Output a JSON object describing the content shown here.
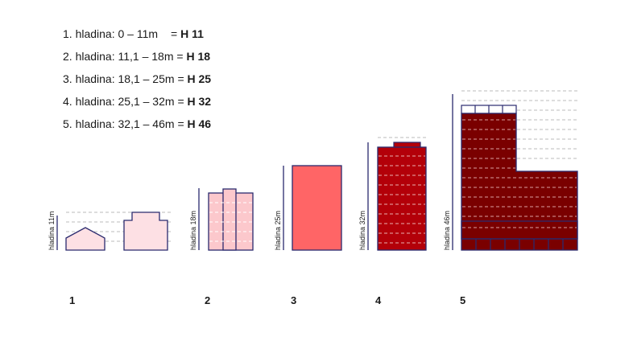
{
  "legend": [
    {
      "prefix": "1. hladina: 0 – 11m",
      "eq": "=",
      "code": "H 11"
    },
    {
      "prefix": "2. hladina: 11,1 – 18m",
      "eq": "=",
      "code": "H 18"
    },
    {
      "prefix": "3. hladina: 18,1 – 25m",
      "eq": "=",
      "code": "H 25"
    },
    {
      "prefix": "4. hladina: 25,1 – 32m",
      "eq": "=",
      "code": "H 32"
    },
    {
      "prefix": "5. hladina: 32,1 – 46m",
      "eq": "=",
      "code": "H 46"
    }
  ],
  "levels": [
    {
      "number": "1",
      "axis_label": "hladina 11m",
      "color": "#fde0e4"
    },
    {
      "number": "2",
      "axis_label": "hladina 18m",
      "color": "#fcc8cc"
    },
    {
      "number": "3",
      "axis_label": "hladina 25m",
      "color": "#ff6566"
    },
    {
      "number": "4",
      "axis_label": "hladina 32m",
      "color": "#b30009"
    },
    {
      "number": "5",
      "axis_label": "hladina 46m",
      "color": "#7a0000"
    }
  ],
  "colors": {
    "outline": "#2a2a6e",
    "dash": "#bbbbbb"
  }
}
